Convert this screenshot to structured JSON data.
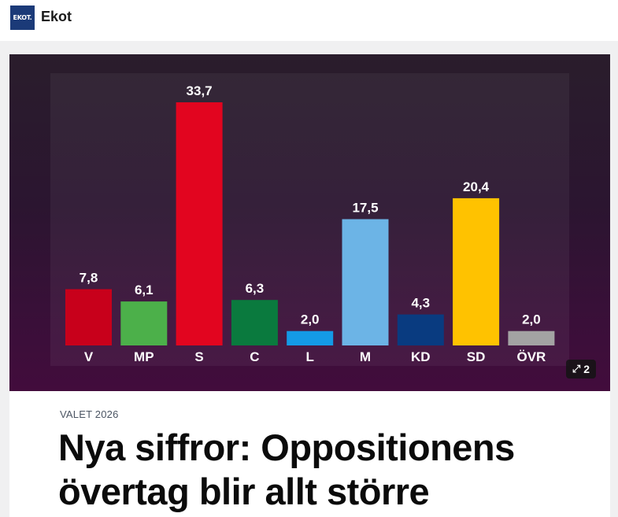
{
  "header": {
    "logo_text": "EKOT.",
    "brand": "Ekot"
  },
  "hero": {
    "gallery_count": "2",
    "expand_icon": "expand-arrows-icon"
  },
  "article": {
    "kicker": "VALET 2026",
    "headline": "Nya siffror: Oppositionens övertag blir allt större"
  },
  "chart_data": {
    "type": "bar",
    "categories": [
      "V",
      "MP",
      "S",
      "C",
      "L",
      "M",
      "KD",
      "SD",
      "ÖVR"
    ],
    "values": [
      7.8,
      6.1,
      33.7,
      6.3,
      2.0,
      17.5,
      4.3,
      20.4,
      2.0
    ],
    "value_labels": [
      "7,8",
      "6,1",
      "33,7",
      "6,3",
      "2,0",
      "17,5",
      "4,3",
      "20,4",
      "2,0"
    ],
    "colors": [
      "#c8001b",
      "#4cb04a",
      "#e2051f",
      "#0a7a3e",
      "#149ae6",
      "#6cb4e6",
      "#093b80",
      "#ffc200",
      "#a3a3a3"
    ],
    "ylim": [
      0,
      35
    ],
    "grid": false,
    "legend": "none"
  }
}
